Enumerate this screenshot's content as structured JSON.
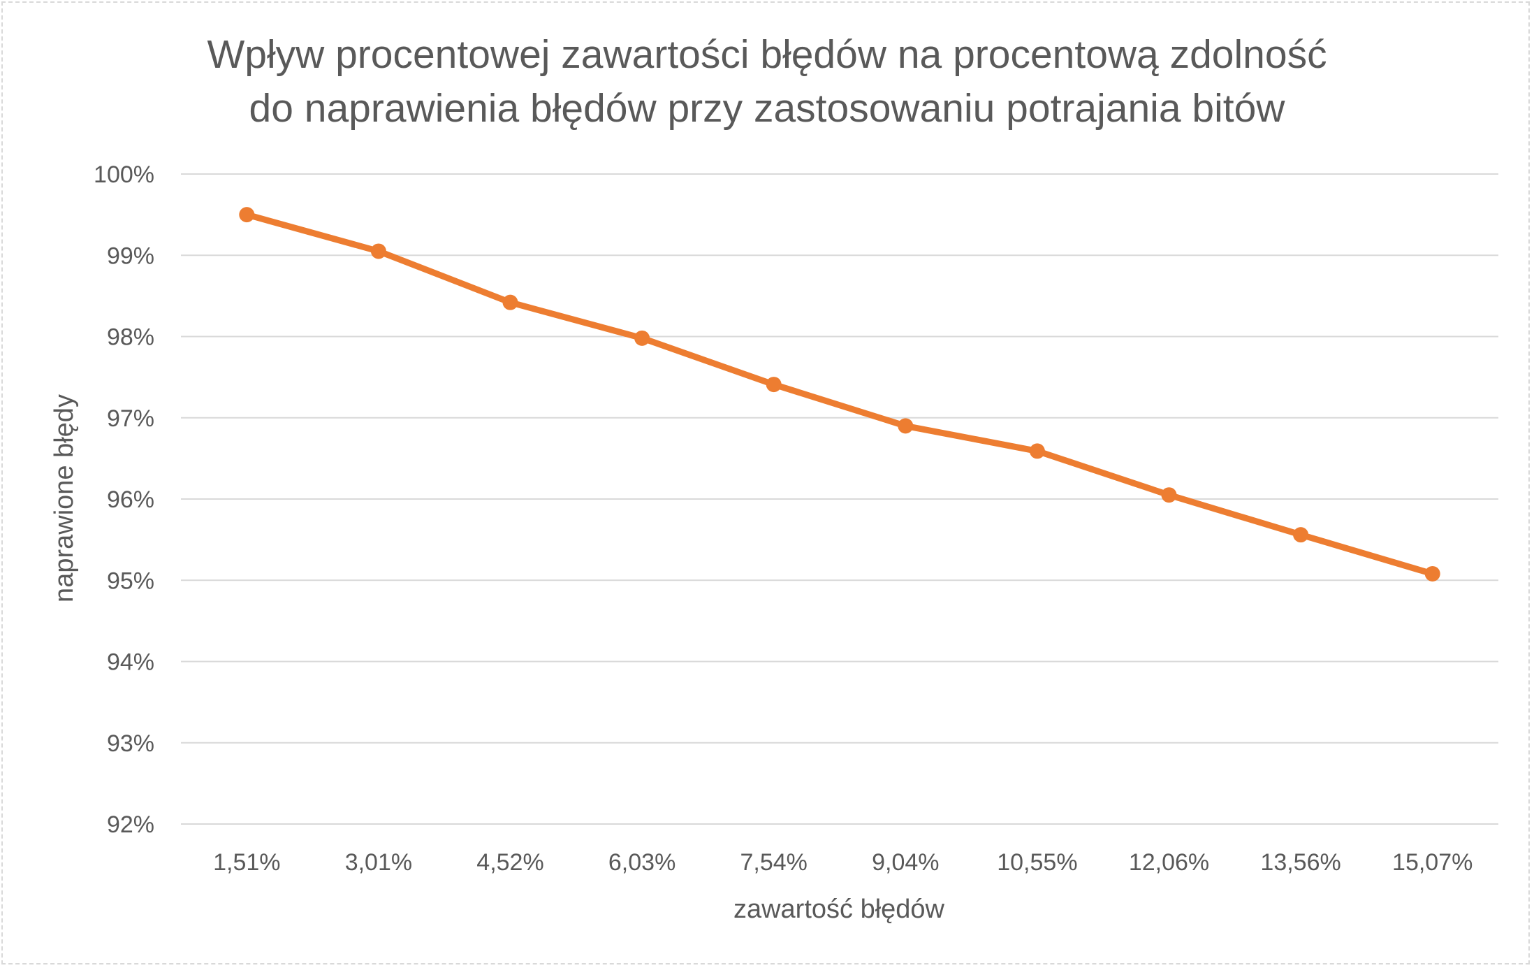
{
  "chart_data": {
    "type": "line",
    "title_lines": [
      "Wpływ procentowej zawartości błędów na procentową zdolność",
      "do naprawienia błędów przy zastosowaniu potrajania bitów"
    ],
    "xlabel": "zawartość błędów",
    "ylabel": "naprawione błędy",
    "categories": [
      "1,51%",
      "3,01%",
      "4,52%",
      "6,03%",
      "7,54%",
      "9,04%",
      "10,55%",
      "12,06%",
      "13,56%",
      "15,07%"
    ],
    "series": [
      {
        "values": [
          99.5,
          99.05,
          98.42,
          97.98,
          97.41,
          96.9,
          96.59,
          96.05,
          95.56,
          95.08
        ],
        "color": "#ed7d31"
      }
    ],
    "y_ticks": [
      "92%",
      "93%",
      "94%",
      "95%",
      "96%",
      "97%",
      "98%",
      "99%",
      "100%"
    ],
    "ylim": [
      92,
      100
    ],
    "y_tick_step": 1,
    "grid": true,
    "legend": false,
    "colors": {
      "line": "#ed7d31",
      "grid": "#d9d9d9",
      "text": "#595959"
    }
  }
}
